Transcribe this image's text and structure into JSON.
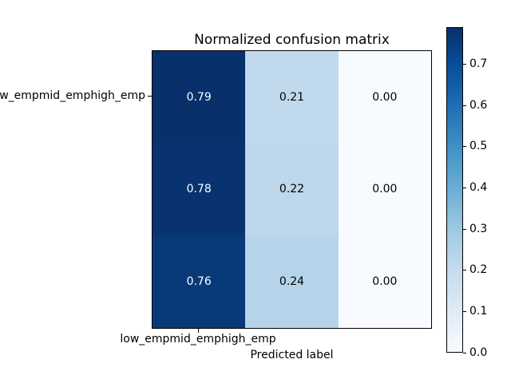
{
  "figure": {
    "background": "#ffffff"
  },
  "chart_data": {
    "type": "heatmap",
    "title": "Normalized confusion matrix",
    "xlabel": "Predicted label",
    "x_tick_labels": [
      "low_empmid_emphigh_emp"
    ],
    "y_tick_labels": [
      "low_empmid_emphigh_emp"
    ],
    "matrix": [
      [
        0.79,
        0.21,
        0.0
      ],
      [
        0.78,
        0.22,
        0.0
      ],
      [
        0.76,
        0.24,
        0.0
      ]
    ],
    "cell_labels": [
      [
        "0.79",
        "0.21",
        "0.00"
      ],
      [
        "0.78",
        "0.22",
        "0.00"
      ],
      [
        "0.76",
        "0.24",
        "0.00"
      ]
    ],
    "cell_colors": [
      [
        "#08306b",
        "#c1d9ed",
        "#f7fbff"
      ],
      [
        "#083370",
        "#bdd7ec",
        "#f7fbff"
      ],
      [
        "#083a7a",
        "#b5d4e9",
        "#f7fbff"
      ]
    ],
    "cell_text_colors": [
      [
        "#ffffff",
        "#000000",
        "#000000"
      ],
      [
        "#ffffff",
        "#000000",
        "#000000"
      ],
      [
        "#ffffff",
        "#000000",
        "#000000"
      ]
    ],
    "colormap": "Blues",
    "vmin": 0.0,
    "vmax": 0.79,
    "grid": false,
    "legend": "none",
    "colorbar": {
      "position": "right",
      "ticks": [
        {
          "value": 0.0,
          "label": "0.0"
        },
        {
          "value": 0.1,
          "label": "0.1"
        },
        {
          "value": 0.2,
          "label": "0.2"
        },
        {
          "value": 0.3,
          "label": "0.3"
        },
        {
          "value": 0.4,
          "label": "0.4"
        },
        {
          "value": 0.5,
          "label": "0.5"
        },
        {
          "value": 0.6,
          "label": "0.6"
        },
        {
          "value": 0.7,
          "label": "0.7"
        }
      ],
      "gradient_stops": [
        {
          "t": 0.0,
          "color": "#f7fbff"
        },
        {
          "t": 0.125,
          "color": "#deebf7"
        },
        {
          "t": 0.25,
          "color": "#c6dbef"
        },
        {
          "t": 0.375,
          "color": "#9ecae1"
        },
        {
          "t": 0.5,
          "color": "#6baed6"
        },
        {
          "t": 0.625,
          "color": "#4292c6"
        },
        {
          "t": 0.75,
          "color": "#2171b5"
        },
        {
          "t": 0.875,
          "color": "#08519c"
        },
        {
          "t": 1.0,
          "color": "#08306b"
        }
      ]
    }
  }
}
